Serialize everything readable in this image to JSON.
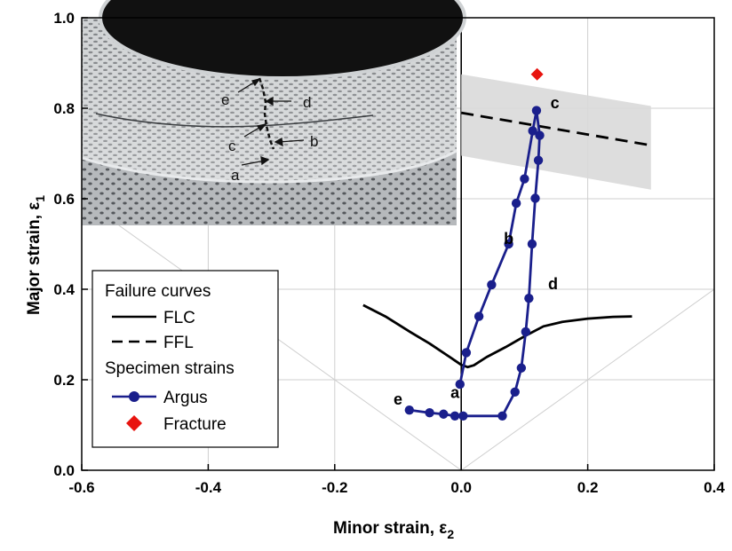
{
  "chart_data": {
    "type": "line",
    "xlabel": "Minor strain, ε",
    "xlabel_sub": "2",
    "ylabel": "Major strain, ε",
    "ylabel_sub": "1",
    "xlim": [
      -0.6,
      0.4
    ],
    "ylim": [
      0.0,
      1.0
    ],
    "xticks": [
      "-0.6",
      "-0.4",
      "-0.2",
      "0.0",
      "0.2",
      "0.4"
    ],
    "yticks": [
      "0.0",
      "0.2",
      "0.4",
      "0.6",
      "0.8",
      "1.0"
    ],
    "grid": true,
    "series": [
      {
        "name": "FLC",
        "style": "solid",
        "color": "#000000",
        "x": [
          -0.155,
          -0.12,
          -0.08,
          -0.05,
          -0.02,
          0.0,
          0.01,
          0.02,
          0.04,
          0.07,
          0.1,
          0.13,
          0.16,
          0.2,
          0.24,
          0.27
        ],
        "y": [
          0.365,
          0.34,
          0.305,
          0.28,
          0.252,
          0.233,
          0.228,
          0.232,
          0.25,
          0.272,
          0.296,
          0.318,
          0.328,
          0.335,
          0.339,
          0.34
        ]
      },
      {
        "name": "FFL",
        "style": "dashed",
        "color": "#000000",
        "x": [
          0.0,
          0.3
        ],
        "y": [
          0.79,
          0.718
        ]
      },
      {
        "name": "Argus",
        "style": "solid-marker",
        "color": "#1a1f8c",
        "x": [
          -0.082,
          -0.05,
          -0.028,
          -0.01,
          0.003,
          0.065,
          0.085,
          0.095,
          0.102,
          0.107,
          0.112,
          0.117,
          0.122,
          0.124,
          0.119,
          0.113,
          0.1,
          0.087,
          0.075,
          0.048,
          0.028,
          0.008,
          -0.002
        ],
        "y": [
          0.133,
          0.127,
          0.124,
          0.12,
          0.12,
          0.12,
          0.173,
          0.226,
          0.306,
          0.38,
          0.5,
          0.601,
          0.685,
          0.74,
          0.795,
          0.75,
          0.644,
          0.59,
          0.5,
          0.41,
          0.34,
          0.26,
          0.19
        ]
      }
    ],
    "fracture": {
      "name": "Fracture",
      "x": 0.12,
      "y": 0.875,
      "color": "#e8140f"
    },
    "fracture_band": {
      "x": [
        0.0,
        0.3
      ],
      "upper": [
        0.875,
        0.805
      ],
      "lower": [
        0.695,
        0.62
      ],
      "color": "#d9d9d9"
    },
    "point_labels": [
      {
        "text": "a",
        "x": -0.01,
        "y": 0.16
      },
      {
        "text": "b",
        "x": 0.075,
        "y": 0.5
      },
      {
        "text": "c",
        "x": 0.148,
        "y": 0.8
      },
      {
        "text": "d",
        "x": 0.145,
        "y": 0.4
      },
      {
        "text": "e",
        "x": -0.1,
        "y": 0.145
      }
    ],
    "legend": {
      "position": "bottom-left",
      "groups": [
        {
          "title": "Failure curves",
          "entries": [
            "FLC",
            "FFL"
          ]
        },
        {
          "title": "Specimen strains",
          "entries": [
            "Argus",
            "Fracture"
          ]
        }
      ]
    },
    "inset": {
      "description": "photo",
      "labels": [
        "e",
        "d",
        "c",
        "b",
        "a"
      ]
    }
  }
}
